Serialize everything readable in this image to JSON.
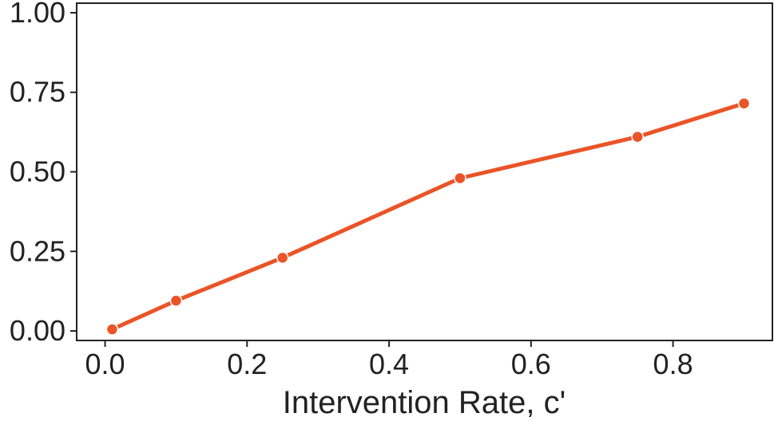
{
  "chart_data": {
    "type": "line",
    "title": "",
    "xlabel": "Intervention Rate, c'",
    "ylabel": "",
    "xlim": [
      -0.04,
      0.94
    ],
    "ylim": [
      -0.03,
      1.03
    ],
    "grid": false,
    "legend": "none",
    "x_ticks": [
      0.0,
      0.2,
      0.4,
      0.6,
      0.8
    ],
    "x_tick_labels": [
      "0.0",
      "0.2",
      "0.4",
      "0.6",
      "0.8"
    ],
    "y_ticks": [
      0.0,
      0.25,
      0.5,
      0.75,
      1.0
    ],
    "y_tick_labels": [
      "0.00",
      "0.25",
      "0.50",
      "0.75",
      "1.00"
    ],
    "series": [
      {
        "color": "#ea5427",
        "x": [
          0.01,
          0.1,
          0.25,
          0.5,
          0.75,
          0.9
        ],
        "y": [
          0.005,
          0.095,
          0.23,
          0.48,
          0.61,
          0.715
        ]
      }
    ]
  }
}
